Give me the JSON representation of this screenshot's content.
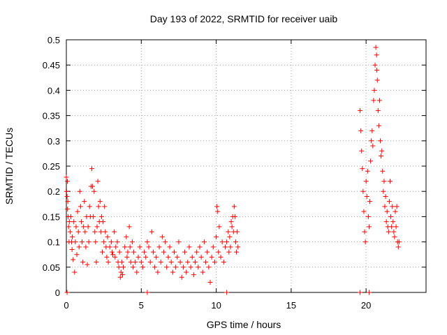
{
  "chart_data": {
    "type": "scatter",
    "title": "Day 193 of 2022, SRMTID for receiver uaib",
    "xlabel": "GPS time / hours",
    "ylabel": "SRMTID / TECUs",
    "xlim": [
      0,
      24
    ],
    "ylim": [
      0,
      0.5
    ],
    "x_ticks": [
      0,
      5,
      10,
      15,
      20
    ],
    "y_ticks": [
      0,
      0.05,
      0.1,
      0.15,
      0.2,
      0.25,
      0.3,
      0.35,
      0.4,
      0.45,
      0.5
    ],
    "grid": true,
    "marker": "plus",
    "color": "#ff0000",
    "series": [
      {
        "name": "SRMTID",
        "points": [
          [
            0.0,
            0.228
          ],
          [
            0.02,
            0.2
          ],
          [
            0.05,
            0.19
          ],
          [
            0.07,
            0.22
          ],
          [
            0.08,
            0.165
          ],
          [
            0.1,
            0.18
          ],
          [
            0.12,
            0.15
          ],
          [
            0.15,
            0.13
          ],
          [
            0.18,
            0.1
          ],
          [
            0.2,
            0.14
          ],
          [
            0.25,
            0.12
          ],
          [
            0.3,
            0.15
          ],
          [
            0.35,
            0.1
          ],
          [
            0.38,
            0.085
          ],
          [
            0.4,
            0.11
          ],
          [
            0.45,
            0.065
          ],
          [
            0.5,
            0.14
          ],
          [
            0.55,
            0.04
          ],
          [
            0.6,
            0.1
          ],
          [
            0.65,
            0.13
          ],
          [
            0.7,
            0.075
          ],
          [
            0.75,
            0.16
          ],
          [
            0.8,
            0.12
          ],
          [
            0.85,
            0.09
          ],
          [
            0.9,
            0.2
          ],
          [
            0.95,
            0.17
          ],
          [
            1.0,
            0.14
          ],
          [
            1.05,
            0.1
          ],
          [
            1.1,
            0.06
          ],
          [
            1.15,
            0.13
          ],
          [
            1.2,
            0.18
          ],
          [
            1.25,
            0.12
          ],
          [
            1.3,
            0.09
          ],
          [
            1.35,
            0.15
          ],
          [
            1.4,
            0.055
          ],
          [
            1.45,
            0.13
          ],
          [
            1.5,
            0.1
          ],
          [
            1.55,
            0.17
          ],
          [
            1.6,
            0.15
          ],
          [
            1.65,
            0.21
          ],
          [
            1.7,
            0.245
          ],
          [
            1.75,
            0.21
          ],
          [
            1.8,
            0.15
          ],
          [
            1.85,
            0.2
          ],
          [
            1.9,
            0.12
          ],
          [
            1.95,
            0.1
          ],
          [
            2.0,
            0.06
          ],
          [
            2.05,
            0.13
          ],
          [
            2.1,
            0.22
          ],
          [
            2.15,
            0.17
          ],
          [
            2.2,
            0.14
          ],
          [
            2.25,
            0.18
          ],
          [
            2.3,
            0.12
          ],
          [
            2.35,
            0.15
          ],
          [
            2.4,
            0.08
          ],
          [
            2.45,
            0.14
          ],
          [
            2.5,
            0.1
          ],
          [
            2.55,
            0.17
          ],
          [
            2.6,
            0.12
          ],
          [
            2.65,
            0.09
          ],
          [
            2.7,
            0.07
          ],
          [
            2.75,
            0.11
          ],
          [
            2.8,
            0.06
          ],
          [
            2.9,
            0.09
          ],
          [
            3.0,
            0.1
          ],
          [
            3.05,
            0.08
          ],
          [
            3.1,
            0.075
          ],
          [
            3.2,
            0.12
          ],
          [
            3.25,
            0.07
          ],
          [
            3.3,
            0.09
          ],
          [
            3.4,
            0.1
          ],
          [
            3.45,
            0.06
          ],
          [
            3.5,
            0.05
          ],
          [
            3.55,
            0.08
          ],
          [
            3.6,
            0.03
          ],
          [
            3.65,
            0.04
          ],
          [
            3.7,
            0.06
          ],
          [
            3.75,
            0.035
          ],
          [
            3.8,
            0.05
          ],
          [
            3.9,
            0.09
          ],
          [
            4.0,
            0.11
          ],
          [
            4.05,
            0.07
          ],
          [
            4.1,
            0.08
          ],
          [
            4.2,
            0.13
          ],
          [
            4.25,
            0.09
          ],
          [
            4.3,
            0.06
          ],
          [
            4.4,
            0.1
          ],
          [
            4.45,
            0.05
          ],
          [
            4.5,
            0.08
          ],
          [
            4.6,
            0.06
          ],
          [
            4.7,
            0.04
          ],
          [
            4.8,
            0.07
          ],
          [
            4.9,
            0.09
          ],
          [
            5.0,
            0.06
          ],
          [
            5.1,
            0.05
          ],
          [
            5.2,
            0.08
          ],
          [
            5.3,
            0.07
          ],
          [
            5.4,
            0.1
          ],
          [
            5.5,
            0.09
          ],
          [
            5.6,
            0.06
          ],
          [
            5.7,
            0.12
          ],
          [
            5.8,
            0.08
          ],
          [
            5.9,
            0.05
          ],
          [
            6.0,
            0.07
          ],
          [
            6.1,
            0.04
          ],
          [
            6.2,
            0.09
          ],
          [
            6.3,
            0.06
          ],
          [
            6.4,
            0.11
          ],
          [
            6.5,
            0.08
          ],
          [
            6.6,
            0.1
          ],
          [
            6.7,
            0.05
          ],
          [
            6.8,
            0.07
          ],
          [
            6.9,
            0.09
          ],
          [
            7.0,
            0.06
          ],
          [
            7.1,
            0.04
          ],
          [
            7.2,
            0.08
          ],
          [
            7.3,
            0.05
          ],
          [
            7.4,
            0.07
          ],
          [
            7.5,
            0.1
          ],
          [
            7.6,
            0.06
          ],
          [
            7.7,
            0.03
          ],
          [
            7.8,
            0.05
          ],
          [
            7.9,
            0.08
          ],
          [
            8.0,
            0.04
          ],
          [
            8.1,
            0.06
          ],
          [
            8.2,
            0.09
          ],
          [
            8.3,
            0.05
          ],
          [
            8.4,
            0.07
          ],
          [
            8.5,
            0.035
          ],
          [
            8.6,
            0.06
          ],
          [
            8.7,
            0.08
          ],
          [
            8.8,
            0.05
          ],
          [
            8.9,
            0.09
          ],
          [
            9.0,
            0.07
          ],
          [
            9.1,
            0.04
          ],
          [
            9.2,
            0.1
          ],
          [
            9.3,
            0.06
          ],
          [
            9.4,
            0.08
          ],
          [
            9.5,
            0.05
          ],
          [
            9.6,
            0.02
          ],
          [
            9.7,
            0.07
          ],
          [
            9.8,
            0.09
          ],
          [
            9.9,
            0.06
          ],
          [
            10.0,
            0.11
          ],
          [
            10.05,
            0.17
          ],
          [
            10.1,
            0.16
          ],
          [
            10.15,
            0.08
          ],
          [
            10.2,
            0.13
          ],
          [
            10.3,
            0.07
          ],
          [
            10.4,
            0.1
          ],
          [
            10.5,
            0.06
          ],
          [
            10.6,
            0.09
          ],
          [
            10.7,
            0.1
          ],
          [
            10.8,
            0.12
          ],
          [
            10.85,
            0.08
          ],
          [
            10.9,
            0.11
          ],
          [
            10.95,
            0.09
          ],
          [
            11.0,
            0.14
          ],
          [
            11.05,
            0.13
          ],
          [
            11.1,
            0.15
          ],
          [
            11.15,
            0.12
          ],
          [
            11.2,
            0.17
          ],
          [
            11.25,
            0.15
          ],
          [
            11.3,
            0.1
          ],
          [
            11.35,
            0.08
          ],
          [
            11.4,
            0.12
          ],
          [
            11.45,
            0.09
          ],
          [
            0.05,
            0.0
          ],
          [
            5.4,
            0.0
          ],
          [
            10.7,
            0.0
          ],
          [
            19.6,
            0.0
          ],
          [
            20.2,
            0.0
          ],
          [
            19.6,
            0.36
          ],
          [
            19.65,
            0.32
          ],
          [
            19.7,
            0.28
          ],
          [
            19.75,
            0.245
          ],
          [
            19.8,
            0.2
          ],
          [
            19.85,
            0.16
          ],
          [
            19.9,
            0.12
          ],
          [
            19.95,
            0.1
          ],
          [
            20.0,
            0.22
          ],
          [
            20.05,
            0.19
          ],
          [
            20.1,
            0.24
          ],
          [
            20.15,
            0.15
          ],
          [
            20.2,
            0.13
          ],
          [
            20.25,
            0.18
          ],
          [
            20.3,
            0.26
          ],
          [
            20.35,
            0.3
          ],
          [
            20.4,
            0.32
          ],
          [
            20.45,
            0.29
          ],
          [
            20.5,
            0.38
          ],
          [
            20.55,
            0.4
          ],
          [
            20.6,
            0.45
          ],
          [
            20.65,
            0.485
          ],
          [
            20.7,
            0.47
          ],
          [
            20.72,
            0.44
          ],
          [
            20.75,
            0.42
          ],
          [
            20.8,
            0.36
          ],
          [
            20.85,
            0.33
          ],
          [
            20.9,
            0.38
          ],
          [
            20.95,
            0.3
          ],
          [
            21.0,
            0.27
          ],
          [
            21.05,
            0.28
          ],
          [
            21.1,
            0.24
          ],
          [
            21.15,
            0.2
          ],
          [
            21.2,
            0.22
          ],
          [
            21.25,
            0.17
          ],
          [
            21.3,
            0.19
          ],
          [
            21.35,
            0.14
          ],
          [
            21.4,
            0.16
          ],
          [
            21.45,
            0.13
          ],
          [
            21.5,
            0.12
          ],
          [
            21.55,
            0.18
          ],
          [
            21.6,
            0.22
          ],
          [
            21.65,
            0.15
          ],
          [
            21.7,
            0.13
          ],
          [
            21.75,
            0.17
          ],
          [
            21.8,
            0.14
          ],
          [
            21.85,
            0.12
          ],
          [
            21.9,
            0.11
          ],
          [
            21.95,
            0.16
          ],
          [
            22.0,
            0.13
          ],
          [
            22.05,
            0.17
          ],
          [
            22.1,
            0.1
          ],
          [
            22.15,
            0.09
          ],
          [
            22.2,
            0.1
          ]
        ]
      }
    ]
  }
}
